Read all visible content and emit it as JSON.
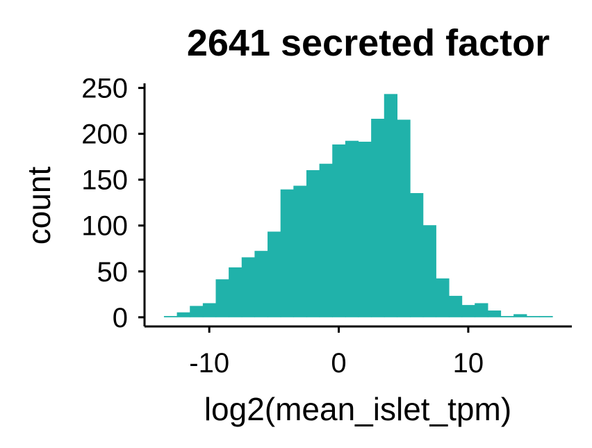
{
  "chart_data": {
    "type": "histogram",
    "title": "2641 secreted factor",
    "xlabel": "log2(mean_islet_tpm)",
    "ylabel": "count",
    "xlim": [
      -15.0,
      18.0
    ],
    "ylim": [
      -10,
      255
    ],
    "x_ticks": [
      -10,
      0,
      10
    ],
    "x_tick_labels": [
      "-10",
      "0",
      "10"
    ],
    "y_ticks": [
      0,
      50,
      100,
      150,
      200,
      250
    ],
    "y_tick_labels": [
      "0",
      "50",
      "100",
      "150",
      "200",
      "250"
    ],
    "bin_width": 1.0,
    "bin_starts": [
      -13.5,
      -12.5,
      -11.5,
      -10.5,
      -9.5,
      -8.5,
      -7.5,
      -6.5,
      -5.5,
      -4.5,
      -3.5,
      -2.5,
      -1.5,
      -0.5,
      0.5,
      1.5,
      2.5,
      3.5,
      4.5,
      5.5,
      6.5,
      7.5,
      8.5,
      9.5,
      10.5,
      11.5,
      12.5,
      13.5,
      14.5,
      15.5
    ],
    "counts": [
      1,
      5,
      12,
      15,
      41,
      54,
      65,
      72,
      93,
      139,
      143,
      160,
      167,
      188,
      192,
      191,
      216,
      243,
      215,
      135,
      100,
      42,
      23,
      13,
      15,
      7,
      1,
      3,
      1,
      1
    ],
    "fill_color": "#20B2AA",
    "grid": false
  }
}
